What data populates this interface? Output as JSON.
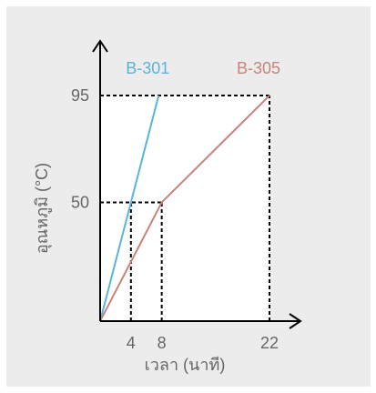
{
  "chart_data": {
    "type": "line",
    "title": "",
    "xlabel": "เวลา (นาที)",
    "ylabel": "อุณหภูมิ (°C)",
    "xlim": [
      0,
      22
    ],
    "ylim": [
      0,
      95
    ],
    "x_ticks": [
      4,
      8,
      22
    ],
    "y_ticks": [
      50,
      95
    ],
    "grid": false,
    "legend": "series names labeled at line tops",
    "series": [
      {
        "name": "B-301",
        "color": "#59b3de",
        "points": [
          [
            0,
            0
          ],
          [
            4,
            50
          ],
          [
            7.6,
            95
          ]
        ]
      },
      {
        "name": "B-305",
        "color": "#c9837a",
        "points": [
          [
            0,
            0
          ],
          [
            8,
            50
          ],
          [
            22,
            95
          ]
        ]
      }
    ],
    "guides": [
      {
        "x": 4,
        "y": 50
      },
      {
        "x": 8,
        "y": 50
      },
      {
        "x": 22,
        "y": 95
      }
    ]
  }
}
